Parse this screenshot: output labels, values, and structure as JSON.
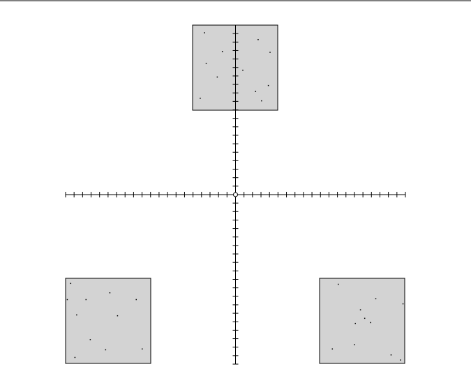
{
  "colors": {
    "background": "#ffffff",
    "panel_fill": "#d3d3d3",
    "stroke": "#000000",
    "origin_fill": "#ffffff"
  },
  "axes": {
    "tick_count_per_half": 20,
    "origin_marker": "circle"
  },
  "panels": [
    {
      "name": "panel-top",
      "dots": [
        [
          0.14,
          0.09
        ],
        [
          0.77,
          0.17
        ],
        [
          0.35,
          0.31
        ],
        [
          0.91,
          0.32
        ],
        [
          0.16,
          0.45
        ],
        [
          0.59,
          0.53
        ],
        [
          0.29,
          0.61
        ],
        [
          0.89,
          0.71
        ],
        [
          0.74,
          0.78
        ],
        [
          0.09,
          0.86
        ],
        [
          0.81,
          0.89
        ]
      ]
    },
    {
      "name": "panel-bottom-left",
      "dots": [
        [
          0.06,
          0.06
        ],
        [
          0.52,
          0.17
        ],
        [
          0.24,
          0.25
        ],
        [
          0.02,
          0.25
        ],
        [
          0.83,
          0.25
        ],
        [
          0.13,
          0.43
        ],
        [
          0.61,
          0.44
        ],
        [
          0.29,
          0.72
        ],
        [
          0.47,
          0.84
        ],
        [
          0.9,
          0.83
        ],
        [
          0.11,
          0.93
        ]
      ]
    },
    {
      "name": "panel-bottom-right",
      "dots": [
        [
          0.22,
          0.07
        ],
        [
          0.66,
          0.24
        ],
        [
          0.98,
          0.3
        ],
        [
          0.48,
          0.37
        ],
        [
          0.53,
          0.47
        ],
        [
          0.6,
          0.52
        ],
        [
          0.42,
          0.53
        ],
        [
          0.41,
          0.78
        ],
        [
          0.15,
          0.83
        ],
        [
          0.84,
          0.9
        ],
        [
          0.95,
          0.96
        ]
      ]
    }
  ]
}
